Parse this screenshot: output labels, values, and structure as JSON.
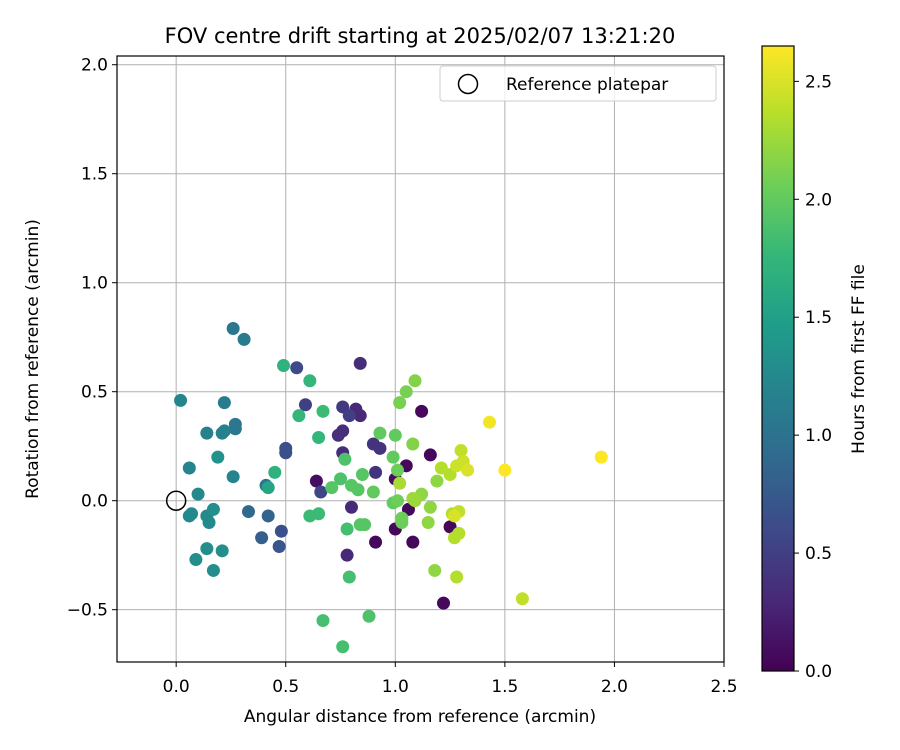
{
  "chart_data": {
    "type": "scatter",
    "title": "FOV centre drift starting at 2025/02/07 13:21:20",
    "xlabel": "Angular distance from reference (arcmin)",
    "ylabel": "Rotation from reference (arcmin)",
    "xlim": [
      -0.27,
      2.5
    ],
    "ylim": [
      -0.74,
      2.04
    ],
    "xticks": [
      0.0,
      0.5,
      1.0,
      1.5,
      2.0,
      2.5
    ],
    "xtick_labels": [
      "0.0",
      "0.5",
      "1.0",
      "1.5",
      "2.0",
      "2.5"
    ],
    "yticks": [
      -0.5,
      0.0,
      0.5,
      1.0,
      1.5,
      2.0
    ],
    "ytick_labels": [
      "−0.5",
      "0.0",
      "0.5",
      "1.0",
      "1.5",
      "2.0"
    ],
    "grid": true,
    "legend": {
      "position": "top-right",
      "entries": [
        "Reference platepar"
      ]
    },
    "reference_point": [
      0.0,
      0.0
    ],
    "colorbar": {
      "label": "Hours from first FF file",
      "range": [
        0.0,
        2.65
      ],
      "ticks": [
        0.0,
        0.5,
        1.0,
        1.5,
        2.0,
        2.5
      ],
      "tick_labels": [
        "0.0",
        "0.5",
        "1.0",
        "1.5",
        "2.0",
        "2.5"
      ],
      "colormap": "viridis",
      "stops": [
        "#440154",
        "#482878",
        "#3e4989",
        "#31688e",
        "#26828e",
        "#1f9e89",
        "#35b779",
        "#6ece58",
        "#b5de2b",
        "#fde725"
      ]
    },
    "points": [
      {
        "x": 0.91,
        "y": -0.19,
        "c": 0.05
      },
      {
        "x": 1.22,
        "y": -0.47,
        "c": 0.05
      },
      {
        "x": 1.08,
        "y": -0.19,
        "c": 0.05
      },
      {
        "x": 1.25,
        "y": -0.12,
        "c": 0.05
      },
      {
        "x": 1.0,
        "y": -0.13,
        "c": 0.05
      },
      {
        "x": 1.06,
        "y": -0.04,
        "c": 0.05
      },
      {
        "x": 1.16,
        "y": 0.21,
        "c": 0.05
      },
      {
        "x": 1.12,
        "y": 0.41,
        "c": 0.05
      },
      {
        "x": 1.05,
        "y": 0.16,
        "c": 0.05
      },
      {
        "x": 1.0,
        "y": 0.1,
        "c": 0.1
      },
      {
        "x": 0.64,
        "y": 0.09,
        "c": 0.1
      },
      {
        "x": 0.78,
        "y": -0.25,
        "c": 0.3
      },
      {
        "x": 0.8,
        "y": -0.03,
        "c": 0.3
      },
      {
        "x": 0.82,
        "y": 0.42,
        "c": 0.3
      },
      {
        "x": 0.84,
        "y": 0.39,
        "c": 0.3
      },
      {
        "x": 0.84,
        "y": 0.63,
        "c": 0.35
      },
      {
        "x": 0.76,
        "y": 0.32,
        "c": 0.35
      },
      {
        "x": 0.74,
        "y": 0.3,
        "c": 0.35
      },
      {
        "x": 0.76,
        "y": 0.22,
        "c": 0.35
      },
      {
        "x": 0.9,
        "y": 0.26,
        "c": 0.4
      },
      {
        "x": 0.93,
        "y": 0.24,
        "c": 0.4
      },
      {
        "x": 0.91,
        "y": 0.13,
        "c": 0.4
      },
      {
        "x": 0.76,
        "y": 0.43,
        "c": 0.45
      },
      {
        "x": 0.79,
        "y": 0.39,
        "c": 0.5
      },
      {
        "x": 0.59,
        "y": 0.44,
        "c": 0.5
      },
      {
        "x": 0.66,
        "y": 0.04,
        "c": 0.55
      },
      {
        "x": 0.55,
        "y": 0.61,
        "c": 0.6
      },
      {
        "x": 0.5,
        "y": 0.22,
        "c": 0.65
      },
      {
        "x": 0.5,
        "y": 0.24,
        "c": 0.65
      },
      {
        "x": 0.48,
        "y": -0.14,
        "c": 0.65
      },
      {
        "x": 0.47,
        "y": -0.21,
        "c": 0.7
      },
      {
        "x": 0.39,
        "y": -0.17,
        "c": 0.8
      },
      {
        "x": 0.42,
        "y": -0.07,
        "c": 0.85
      },
      {
        "x": 0.33,
        "y": -0.05,
        "c": 0.9
      },
      {
        "x": 0.41,
        "y": 0.07,
        "c": 1.0
      },
      {
        "x": 0.27,
        "y": 0.33,
        "c": 1.05
      },
      {
        "x": 0.27,
        "y": 0.35,
        "c": 1.05
      },
      {
        "x": 0.26,
        "y": 0.79,
        "c": 1.05
      },
      {
        "x": 0.31,
        "y": 0.74,
        "c": 1.1
      },
      {
        "x": 0.22,
        "y": 0.45,
        "c": 1.1
      },
      {
        "x": 0.22,
        "y": 0.32,
        "c": 1.15
      },
      {
        "x": 0.21,
        "y": 0.31,
        "c": 1.15
      },
      {
        "x": 0.14,
        "y": 0.31,
        "c": 1.15
      },
      {
        "x": 0.02,
        "y": 0.46,
        "c": 1.2
      },
      {
        "x": 0.26,
        "y": 0.11,
        "c": 1.2
      },
      {
        "x": 0.06,
        "y": 0.15,
        "c": 1.2
      },
      {
        "x": 0.1,
        "y": 0.03,
        "c": 1.25
      },
      {
        "x": 0.07,
        "y": -0.06,
        "c": 1.25
      },
      {
        "x": 0.06,
        "y": -0.07,
        "c": 1.25
      },
      {
        "x": 0.15,
        "y": -0.1,
        "c": 1.25
      },
      {
        "x": 0.14,
        "y": -0.07,
        "c": 1.25
      },
      {
        "x": 0.17,
        "y": -0.04,
        "c": 1.3
      },
      {
        "x": 0.14,
        "y": -0.22,
        "c": 1.3
      },
      {
        "x": 0.09,
        "y": -0.27,
        "c": 1.3
      },
      {
        "x": 0.21,
        "y": -0.23,
        "c": 1.3
      },
      {
        "x": 0.17,
        "y": -0.32,
        "c": 1.3
      },
      {
        "x": 0.19,
        "y": 0.2,
        "c": 1.35
      },
      {
        "x": 0.42,
        "y": 0.06,
        "c": 1.55
      },
      {
        "x": 0.45,
        "y": 0.13,
        "c": 1.7
      },
      {
        "x": 0.49,
        "y": 0.62,
        "c": 1.7
      },
      {
        "x": 0.56,
        "y": 0.39,
        "c": 1.75
      },
      {
        "x": 0.61,
        "y": 0.55,
        "c": 1.75
      },
      {
        "x": 0.65,
        "y": 0.29,
        "c": 1.75
      },
      {
        "x": 0.67,
        "y": 0.41,
        "c": 1.8
      },
      {
        "x": 0.61,
        "y": -0.07,
        "c": 1.8
      },
      {
        "x": 0.65,
        "y": -0.06,
        "c": 1.8
      },
      {
        "x": 0.67,
        "y": -0.55,
        "c": 1.85
      },
      {
        "x": 0.76,
        "y": -0.67,
        "c": 1.85
      },
      {
        "x": 0.79,
        "y": -0.35,
        "c": 1.85
      },
      {
        "x": 0.78,
        "y": -0.13,
        "c": 1.85
      },
      {
        "x": 0.88,
        "y": -0.53,
        "c": 1.9
      },
      {
        "x": 0.75,
        "y": 0.1,
        "c": 1.9
      },
      {
        "x": 0.77,
        "y": 0.19,
        "c": 1.9
      },
      {
        "x": 0.71,
        "y": 0.06,
        "c": 1.95
      },
      {
        "x": 0.8,
        "y": 0.07,
        "c": 1.95
      },
      {
        "x": 0.83,
        "y": 0.05,
        "c": 1.95
      },
      {
        "x": 0.85,
        "y": 0.12,
        "c": 1.95
      },
      {
        "x": 0.84,
        "y": -0.11,
        "c": 1.95
      },
      {
        "x": 0.86,
        "y": -0.11,
        "c": 1.95
      },
      {
        "x": 0.9,
        "y": 0.04,
        "c": 2.0
      },
      {
        "x": 0.93,
        "y": 0.31,
        "c": 2.0
      },
      {
        "x": 0.99,
        "y": 0.2,
        "c": 2.0
      },
      {
        "x": 1.0,
        "y": 0.3,
        "c": 2.0
      },
      {
        "x": 0.99,
        "y": -0.01,
        "c": 2.0
      },
      {
        "x": 1.01,
        "y": 0.14,
        "c": 2.05
      },
      {
        "x": 1.01,
        "y": 0.0,
        "c": 2.05
      },
      {
        "x": 1.03,
        "y": -0.08,
        "c": 2.05
      },
      {
        "x": 1.03,
        "y": -0.1,
        "c": 2.05
      },
      {
        "x": 1.02,
        "y": 0.45,
        "c": 2.1
      },
      {
        "x": 1.05,
        "y": 0.5,
        "c": 2.1
      },
      {
        "x": 1.09,
        "y": 0.55,
        "c": 2.15
      },
      {
        "x": 1.08,
        "y": 0.26,
        "c": 2.15
      },
      {
        "x": 1.12,
        "y": 0.03,
        "c": 2.2
      },
      {
        "x": 1.15,
        "y": -0.1,
        "c": 2.2
      },
      {
        "x": 1.16,
        "y": -0.03,
        "c": 2.2
      },
      {
        "x": 1.18,
        "y": -0.32,
        "c": 2.2
      },
      {
        "x": 1.19,
        "y": 0.09,
        "c": 2.2
      },
      {
        "x": 1.09,
        "y": 0.0,
        "c": 2.25
      },
      {
        "x": 1.08,
        "y": 0.01,
        "c": 2.25
      },
      {
        "x": 1.02,
        "y": 0.08,
        "c": 2.3
      },
      {
        "x": 1.21,
        "y": 0.15,
        "c": 2.35
      },
      {
        "x": 1.25,
        "y": 0.12,
        "c": 2.35
      },
      {
        "x": 1.27,
        "y": -0.17,
        "c": 2.35
      },
      {
        "x": 1.29,
        "y": -0.15,
        "c": 2.35
      },
      {
        "x": 1.28,
        "y": -0.35,
        "c": 2.35
      },
      {
        "x": 1.26,
        "y": -0.06,
        "c": 2.35
      },
      {
        "x": 1.3,
        "y": 0.23,
        "c": 2.4
      },
      {
        "x": 1.29,
        "y": -0.05,
        "c": 2.4
      },
      {
        "x": 1.58,
        "y": -0.45,
        "c": 2.4
      },
      {
        "x": 1.28,
        "y": 0.16,
        "c": 2.45
      },
      {
        "x": 1.31,
        "y": 0.18,
        "c": 2.45
      },
      {
        "x": 1.33,
        "y": 0.14,
        "c": 2.5
      },
      {
        "x": 1.27,
        "y": -0.07,
        "c": 2.5
      },
      {
        "x": 1.43,
        "y": 0.36,
        "c": 2.6
      },
      {
        "x": 1.5,
        "y": 0.14,
        "c": 2.65
      },
      {
        "x": 1.94,
        "y": 0.2,
        "c": 2.65
      }
    ]
  }
}
